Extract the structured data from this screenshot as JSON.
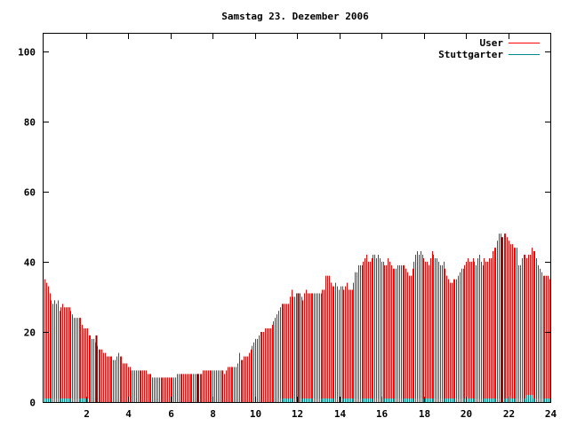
{
  "chart_data": {
    "type": "bar",
    "title": "Samstag 23. Dezember 2006",
    "xlabel": "",
    "ylabel": "",
    "xlim": [
      0,
      24
    ],
    "ylim": [
      0,
      105
    ],
    "x_ticks": [
      2,
      4,
      6,
      8,
      10,
      12,
      14,
      16,
      18,
      20,
      22,
      24
    ],
    "y_ticks": [
      0,
      20,
      40,
      60,
      80,
      100
    ],
    "grid": false,
    "legend_position": "top-right",
    "bin_hours": 0.0833,
    "series": [
      {
        "name": "User",
        "color": "#ff0000",
        "values": [
          35,
          34,
          33,
          31,
          29,
          28,
          29,
          28,
          29,
          26,
          27,
          28,
          27,
          27,
          27,
          27,
          26,
          25,
          24,
          24,
          24,
          24,
          24,
          22,
          21,
          21,
          21,
          19,
          19,
          18,
          18,
          17,
          16,
          15,
          15,
          15,
          14,
          14,
          13,
          13,
          13,
          13,
          12,
          12,
          13,
          14,
          13,
          13,
          11,
          11,
          11,
          10,
          10,
          9,
          9,
          9,
          9,
          9,
          9,
          9,
          9,
          9,
          9,
          8,
          8,
          8,
          7,
          7,
          7,
          7,
          7,
          7,
          7,
          7,
          7,
          7,
          7,
          7,
          7,
          7,
          7,
          8,
          8,
          8,
          8,
          8,
          8,
          8,
          8,
          8,
          8,
          8,
          8,
          8,
          8,
          8,
          8,
          9,
          9,
          9,
          9,
          9,
          9,
          9,
          9,
          9,
          9,
          9,
          9,
          9,
          8,
          9,
          10,
          10,
          10,
          10,
          10,
          10,
          11,
          14,
          12,
          12,
          13,
          13,
          13,
          14,
          15,
          16,
          17,
          18,
          18,
          19,
          20,
          20,
          20,
          21,
          21,
          21,
          21,
          22,
          23,
          24,
          25,
          26,
          27,
          28,
          28,
          28,
          28,
          28,
          30,
          32,
          30,
          30,
          31,
          30,
          31,
          30,
          29,
          31,
          32,
          31,
          31,
          31,
          31,
          31,
          31,
          31,
          31,
          31,
          32,
          32,
          36,
          36,
          36,
          34,
          33,
          33,
          34,
          33,
          32,
          33,
          33,
          32,
          33,
          34,
          32,
          32,
          32,
          34,
          37,
          37,
          39,
          39,
          39,
          40,
          41,
          42,
          40,
          40,
          41,
          42,
          42,
          41,
          42,
          41,
          40,
          40,
          39,
          39,
          41,
          40,
          39,
          38,
          38,
          38,
          39,
          39,
          39,
          39,
          39,
          38,
          37,
          36,
          36,
          38,
          40,
          42,
          43,
          42,
          43,
          42,
          41,
          40,
          40,
          39,
          41,
          43,
          42,
          41,
          41,
          40,
          39,
          39,
          40,
          38,
          36,
          35,
          34,
          34,
          35,
          35,
          35,
          36,
          37,
          38,
          38,
          39,
          40,
          41,
          40,
          40,
          41,
          40,
          39,
          41,
          42,
          40,
          39,
          41,
          40,
          40,
          41,
          41,
          43,
          44,
          44,
          46,
          48,
          48,
          47,
          48,
          48,
          47,
          46,
          45,
          45,
          44,
          44,
          44,
          39,
          39,
          41,
          42,
          42,
          41,
          42,
          42,
          44,
          43,
          43,
          41,
          39,
          38,
          37,
          36,
          36,
          36,
          36,
          35
        ]
      },
      {
        "name": "Stuttgarter",
        "color": "#008b8b",
        "values": [
          1,
          1,
          1,
          1,
          1,
          1,
          1,
          1,
          1,
          1,
          1,
          1,
          1,
          1,
          1,
          1,
          1,
          1,
          1,
          1,
          1,
          1,
          1,
          1,
          1,
          1,
          1,
          0,
          0,
          0,
          0,
          0,
          0,
          0,
          0,
          0,
          0,
          0,
          0,
          0,
          0,
          0,
          0,
          0,
          0,
          0,
          0,
          0,
          0,
          0,
          0,
          0,
          0,
          0,
          0,
          0,
          0,
          0,
          0,
          0,
          0,
          0,
          0,
          0,
          0,
          0,
          0,
          0,
          0,
          0,
          0,
          0,
          0,
          0,
          0,
          0,
          0,
          0,
          0,
          0,
          0,
          0,
          0,
          0,
          0,
          0,
          0,
          0,
          0,
          0,
          0,
          0,
          0,
          0,
          0,
          0,
          0,
          0,
          0,
          0,
          0,
          0,
          0,
          0,
          0,
          0,
          0,
          0,
          0,
          0,
          0,
          0,
          0,
          0,
          0,
          0,
          0,
          0,
          0,
          0,
          0,
          0,
          0,
          0,
          0,
          0,
          0,
          0,
          0,
          0,
          0,
          0,
          0,
          0,
          0,
          0,
          0,
          0,
          0,
          0,
          0,
          0,
          0,
          1,
          1,
          1,
          1,
          1,
          1,
          1,
          1,
          1,
          1,
          1,
          1,
          1,
          1,
          1,
          1,
          1,
          1,
          1,
          1,
          1,
          1,
          1,
          1,
          1,
          1,
          1,
          1,
          1,
          1,
          1,
          1,
          1,
          1,
          1,
          1,
          1,
          1,
          1,
          1,
          1,
          1,
          1,
          1,
          1,
          1,
          1,
          1,
          1,
          1,
          1,
          1,
          1,
          1,
          1,
          1,
          1,
          1,
          1,
          1,
          1,
          1,
          1,
          1,
          1,
          1,
          1,
          1,
          1,
          1,
          1,
          1,
          1,
          1,
          1,
          1,
          1,
          1,
          1,
          1,
          1,
          1,
          1,
          1,
          1,
          1,
          1,
          1,
          1,
          1,
          1,
          1,
          1,
          1,
          1,
          1,
          1,
          1,
          1,
          1,
          1,
          1,
          1,
          1,
          1,
          1,
          1,
          1,
          1,
          1,
          1,
          1,
          1,
          1,
          1,
          1,
          1,
          1,
          1,
          1,
          1,
          1,
          1,
          1,
          1,
          1,
          1,
          1,
          1,
          1,
          1,
          1,
          1,
          1,
          1,
          1,
          1,
          1,
          1,
          1,
          1,
          1,
          1,
          1,
          1,
          1,
          1,
          1,
          1,
          1,
          1,
          1,
          2,
          2,
          2,
          2,
          1,
          1,
          1,
          1,
          1,
          1,
          1,
          1,
          1,
          1,
          1
        ]
      }
    ],
    "annotations": [
      {
        "x": 2.5,
        "value": 19,
        "note": "dark red spike"
      },
      {
        "x": 7.3,
        "value": 8,
        "note": "dark red spike"
      },
      {
        "x": 12.05,
        "value": 31,
        "note": "dark red spike"
      },
      {
        "x": 21.7,
        "value": 47,
        "note": "dark red spike"
      }
    ]
  }
}
